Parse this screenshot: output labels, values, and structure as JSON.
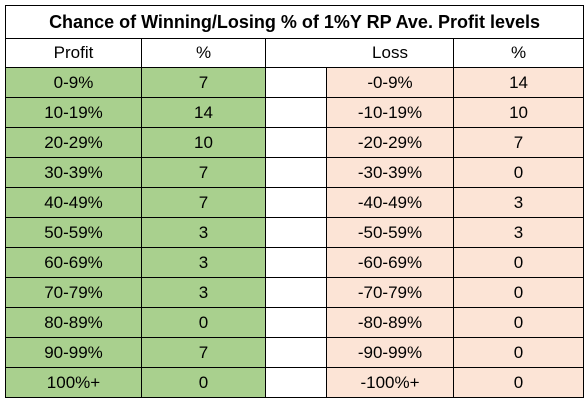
{
  "title": "Chance of Winning/Losing % of 1%Y RP Ave. Profit levels",
  "headers": {
    "profit": "Profit",
    "profit_pct": "%",
    "loss": "Loss",
    "loss_pct": "%"
  },
  "colors": {
    "profit_fill": "#a9d08e",
    "loss_fill": "#fce4d6"
  },
  "rows": [
    {
      "profit": "0-9%",
      "profit_pct": "7",
      "loss": "-0-9%",
      "loss_pct": "14"
    },
    {
      "profit": "10-19%",
      "profit_pct": "14",
      "loss": "-10-19%",
      "loss_pct": "10"
    },
    {
      "profit": "20-29%",
      "profit_pct": "10",
      "loss": "-20-29%",
      "loss_pct": "7"
    },
    {
      "profit": "30-39%",
      "profit_pct": "7",
      "loss": "-30-39%",
      "loss_pct": "0"
    },
    {
      "profit": "40-49%",
      "profit_pct": "7",
      "loss": "-40-49%",
      "loss_pct": "3"
    },
    {
      "profit": "50-59%",
      "profit_pct": "3",
      "loss": "-50-59%",
      "loss_pct": "3"
    },
    {
      "profit": "60-69%",
      "profit_pct": "3",
      "loss": "-60-69%",
      "loss_pct": "0"
    },
    {
      "profit": "70-79%",
      "profit_pct": "3",
      "loss": "-70-79%",
      "loss_pct": "0"
    },
    {
      "profit": "80-89%",
      "profit_pct": "0",
      "loss": "-80-89%",
      "loss_pct": "0"
    },
    {
      "profit": "90-99%",
      "profit_pct": "7",
      "loss": "-90-99%",
      "loss_pct": "0"
    },
    {
      "profit": "100%+",
      "profit_pct": "0",
      "loss": "-100%+",
      "loss_pct": "0"
    }
  ]
}
